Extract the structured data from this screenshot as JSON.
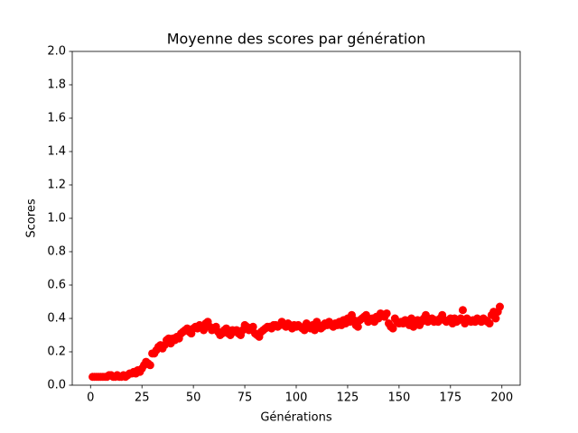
{
  "chart_data": {
    "type": "scatter",
    "title": "Moyenne des scores par génération",
    "xlabel": "Générations",
    "ylabel": "Scores",
    "color": "#ff0000",
    "x": [
      1,
      2,
      3,
      4,
      5,
      6,
      7,
      8,
      9,
      10,
      11,
      12,
      13,
      14,
      15,
      16,
      17,
      18,
      19,
      20,
      21,
      22,
      23,
      24,
      25,
      26,
      27,
      28,
      29,
      30,
      31,
      32,
      33,
      34,
      35,
      36,
      37,
      38,
      39,
      40,
      41,
      42,
      43,
      44,
      45,
      46,
      47,
      48,
      49,
      50,
      51,
      52,
      53,
      54,
      55,
      56,
      57,
      58,
      59,
      60,
      61,
      62,
      63,
      64,
      65,
      66,
      67,
      68,
      69,
      70,
      71,
      72,
      73,
      74,
      75,
      76,
      77,
      78,
      79,
      80,
      81,
      82,
      83,
      84,
      85,
      86,
      87,
      88,
      89,
      90,
      91,
      92,
      93,
      94,
      95,
      96,
      97,
      98,
      99,
      100,
      101,
      102,
      103,
      104,
      105,
      106,
      107,
      108,
      109,
      110,
      111,
      112,
      113,
      114,
      115,
      116,
      117,
      118,
      119,
      120,
      121,
      122,
      123,
      124,
      125,
      126,
      127,
      128,
      129,
      130,
      131,
      132,
      133,
      134,
      135,
      136,
      137,
      138,
      139,
      140,
      141,
      142,
      143,
      144,
      145,
      146,
      147,
      148,
      149,
      150,
      151,
      152,
      153,
      154,
      155,
      156,
      157,
      158,
      159,
      160,
      161,
      162,
      163,
      164,
      165,
      166,
      167,
      168,
      169,
      170,
      171,
      172,
      173,
      174,
      175,
      176,
      177,
      178,
      179,
      180,
      181,
      182,
      183,
      184,
      185,
      186,
      187,
      188,
      189,
      190,
      191,
      192,
      193,
      194,
      195,
      196,
      197,
      198,
      199
    ],
    "values": [
      0.05,
      0.05,
      0.05,
      0.05,
      0.05,
      0.05,
      0.05,
      0.05,
      0.06,
      0.06,
      0.05,
      0.05,
      0.06,
      0.05,
      0.05,
      0.06,
      0.05,
      0.06,
      0.07,
      0.07,
      0.08,
      0.07,
      0.09,
      0.08,
      0.1,
      0.12,
      0.14,
      0.13,
      0.12,
      0.19,
      0.19,
      0.21,
      0.23,
      0.24,
      0.22,
      0.24,
      0.27,
      0.28,
      0.25,
      0.28,
      0.27,
      0.29,
      0.28,
      0.31,
      0.32,
      0.33,
      0.34,
      0.32,
      0.31,
      0.34,
      0.35,
      0.34,
      0.36,
      0.35,
      0.33,
      0.37,
      0.38,
      0.35,
      0.33,
      0.34,
      0.35,
      0.32,
      0.3,
      0.31,
      0.33,
      0.34,
      0.31,
      0.3,
      0.33,
      0.32,
      0.33,
      0.31,
      0.3,
      0.33,
      0.36,
      0.35,
      0.33,
      0.34,
      0.35,
      0.31,
      0.3,
      0.29,
      0.32,
      0.33,
      0.34,
      0.35,
      0.35,
      0.34,
      0.36,
      0.36,
      0.35,
      0.36,
      0.38,
      0.36,
      0.35,
      0.37,
      0.36,
      0.34,
      0.36,
      0.35,
      0.36,
      0.35,
      0.34,
      0.33,
      0.37,
      0.35,
      0.34,
      0.36,
      0.33,
      0.38,
      0.36,
      0.34,
      0.35,
      0.37,
      0.36,
      0.38,
      0.36,
      0.35,
      0.37,
      0.36,
      0.38,
      0.36,
      0.39,
      0.37,
      0.4,
      0.38,
      0.42,
      0.39,
      0.36,
      0.35,
      0.39,
      0.4,
      0.41,
      0.42,
      0.38,
      0.39,
      0.4,
      0.38,
      0.41,
      0.4,
      0.43,
      0.42,
      0.41,
      0.43,
      0.37,
      0.35,
      0.34,
      0.4,
      0.38,
      0.37,
      0.38,
      0.37,
      0.39,
      0.38,
      0.36,
      0.4,
      0.35,
      0.38,
      0.39,
      0.36,
      0.38,
      0.4,
      0.42,
      0.38,
      0.39,
      0.4,
      0.38,
      0.39,
      0.38,
      0.4,
      0.42,
      0.39,
      0.38,
      0.39,
      0.4,
      0.37,
      0.4,
      0.38,
      0.39,
      0.4,
      0.45,
      0.37,
      0.4,
      0.39,
      0.38,
      0.39,
      0.38,
      0.4,
      0.39,
      0.38,
      0.4,
      0.39,
      0.38,
      0.37,
      0.42,
      0.44,
      0.4,
      0.44,
      0.47
    ],
    "xlim": [
      -8.9,
      208.9
    ],
    "xticks": [
      0,
      25,
      50,
      75,
      100,
      125,
      150,
      175,
      200
    ],
    "ylim": [
      0,
      2
    ],
    "yticks": [
      {
        "value": 0,
        "label": "0.0"
      },
      {
        "value": 0.2,
        "label": "0.2"
      },
      {
        "value": 0.4,
        "label": "0.4"
      },
      {
        "value": 0.6,
        "label": "0.6"
      },
      {
        "value": 0.8,
        "label": "0.8"
      },
      {
        "value": 1.0,
        "label": "1.0"
      },
      {
        "value": 1.2,
        "label": "1.2"
      },
      {
        "value": 1.4,
        "label": "1.4"
      },
      {
        "value": 1.6,
        "label": "1.6"
      },
      {
        "value": 1.8,
        "label": "1.8"
      },
      {
        "value": 2.0,
        "label": "2.0"
      }
    ]
  }
}
